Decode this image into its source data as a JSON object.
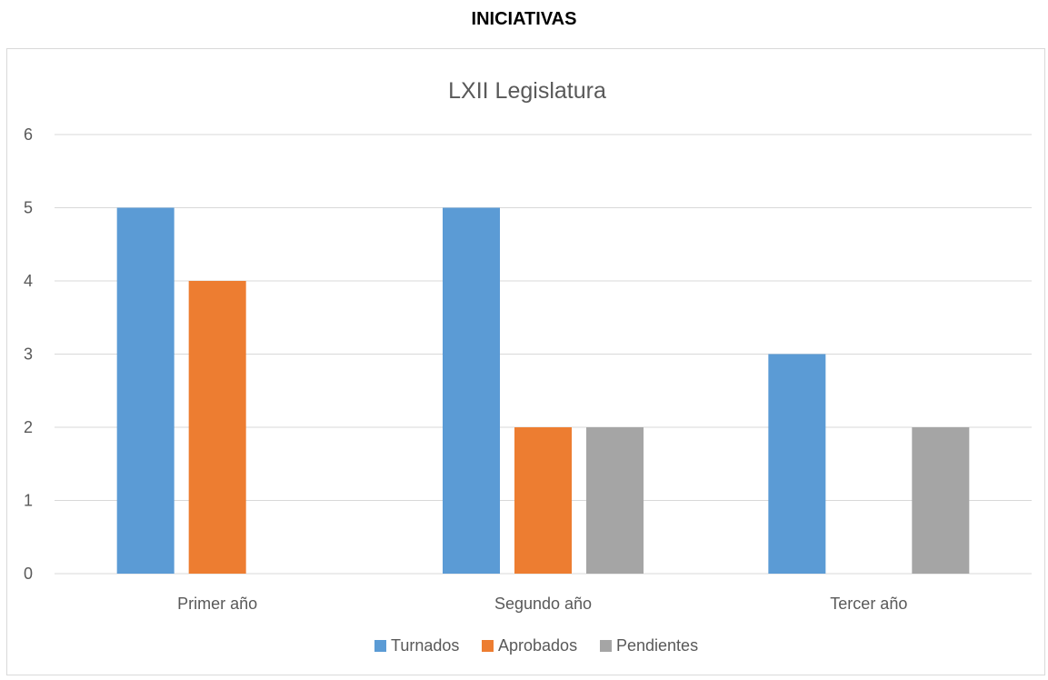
{
  "heading": "INICIATIVAS",
  "chart_data": {
    "type": "bar",
    "title": "LXII Legislatura",
    "xlabel": "",
    "ylabel": "",
    "categories": [
      "Primer año",
      "Segundo año",
      "Tercer año"
    ],
    "series": [
      {
        "name": "Turnados",
        "values": [
          5,
          5,
          3
        ],
        "color": "#5b9bd5"
      },
      {
        "name": "Aprobados",
        "values": [
          4,
          2,
          null
        ],
        "color": "#ed7d31"
      },
      {
        "name": "Pendientes",
        "values": [
          null,
          2,
          2
        ],
        "color": "#a5a5a5"
      }
    ],
    "ylim": [
      0,
      6
    ],
    "yticks": [
      0,
      1,
      2,
      3,
      4,
      5,
      6
    ],
    "grid": true,
    "gridColor": "#d9d9d9",
    "legend_position": "bottom"
  }
}
